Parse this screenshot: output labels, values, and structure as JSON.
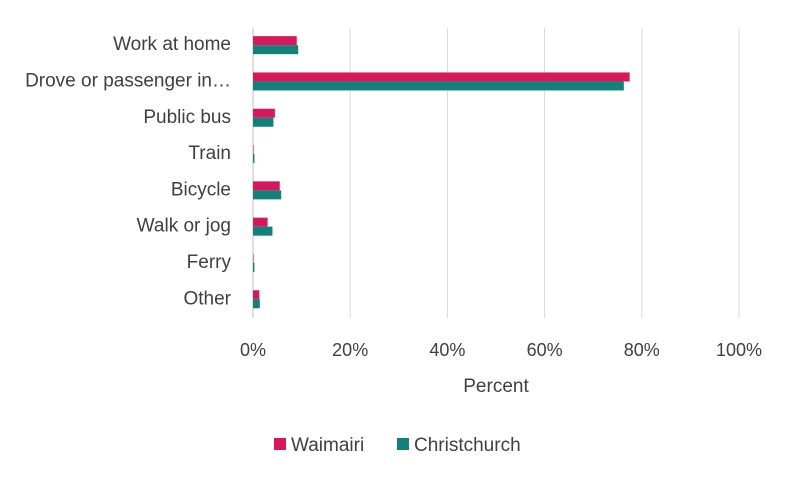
{
  "chart_data": {
    "type": "bar",
    "orientation": "horizontal",
    "categories": [
      "Work at home",
      "Drove or passenger in…",
      "Public bus",
      "Train",
      "Bicycle",
      "Walk or jog",
      "Ferry",
      "Other"
    ],
    "series": [
      {
        "name": "Waimairi",
        "color": "#d6185c",
        "values": [
          9.0,
          77.5,
          4.5,
          0.1,
          5.5,
          3.0,
          0.1,
          1.3
        ]
      },
      {
        "name": "Christchurch",
        "color": "#13807a",
        "values": [
          9.3,
          76.3,
          4.2,
          0.3,
          5.8,
          4.0,
          0.3,
          1.4
        ]
      }
    ],
    "xlabel": "Percent",
    "xlim": [
      0,
      100
    ],
    "xticks": [
      "0%",
      "20%",
      "40%",
      "60%",
      "80%",
      "100%"
    ],
    "grid": true,
    "legend_position": "bottom"
  }
}
